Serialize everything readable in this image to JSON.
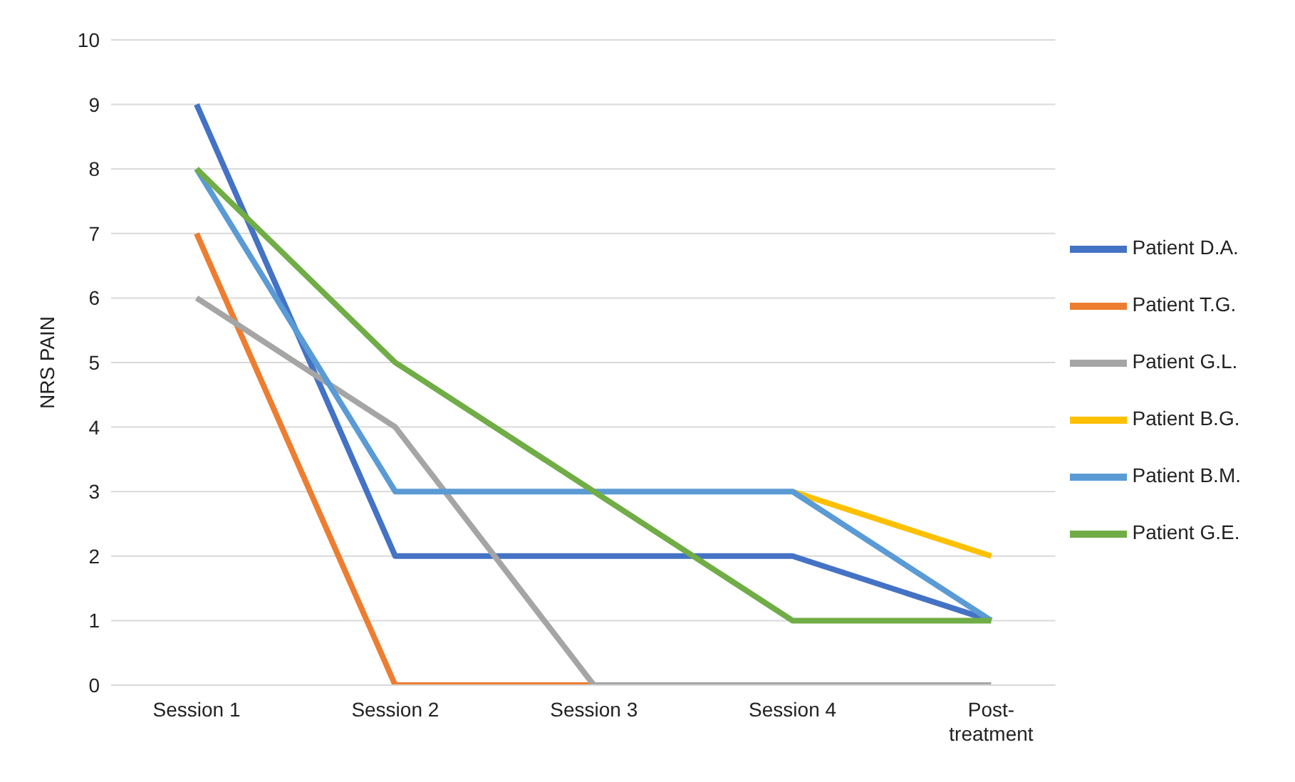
{
  "chart_data": {
    "type": "line",
    "ylabel": "NRS PAIN",
    "categories": [
      "Session 1",
      "Session 2",
      "Session 3",
      "Session 4",
      "Post-treatment"
    ],
    "series": [
      {
        "name": "Patient D.A.",
        "color": "#4472c4",
        "values": [
          9,
          2,
          2,
          2,
          1
        ]
      },
      {
        "name": "Patient T.G.",
        "color": "#ed7d31",
        "values": [
          7,
          0,
          0,
          null,
          null
        ]
      },
      {
        "name": "Patient G.L.",
        "color": "#a5a5a5",
        "values": [
          6,
          4,
          0,
          0,
          0
        ]
      },
      {
        "name": "Patient B.G.",
        "color": "#ffc000",
        "values": [
          null,
          null,
          null,
          3,
          2
        ]
      },
      {
        "name": "Patient B.M.",
        "color": "#5b9bd5",
        "values": [
          8,
          3,
          3,
          3,
          1
        ]
      },
      {
        "name": "Patient G.E.",
        "color": "#70ad47",
        "values": [
          8,
          5,
          3,
          1,
          1
        ]
      }
    ],
    "ylim": [
      0,
      10
    ],
    "yticks": [
      0,
      1,
      2,
      3,
      4,
      5,
      6,
      7,
      8,
      9,
      10
    ],
    "grid": "y",
    "legend": "right",
    "marker": "none",
    "line_style": "solid"
  }
}
